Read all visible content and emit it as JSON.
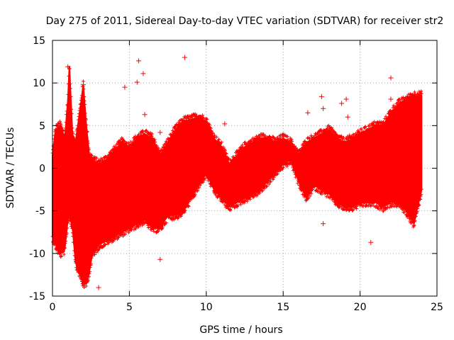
{
  "chart_data": {
    "type": "scatter",
    "title": "Day 275 of 2011, Sidereal Day-to-day VTEC variation (SDTVAR) for receiver str2",
    "xlabel": "GPS time / hours",
    "ylabel": "SDTVAR / TECUs",
    "xlim": [
      0,
      25
    ],
    "ylim": [
      -15,
      15
    ],
    "xticks": [
      0,
      5,
      10,
      15,
      20,
      25
    ],
    "yticks": [
      -15,
      -10,
      -5,
      0,
      5,
      10,
      15
    ],
    "grid": true,
    "legend": "none",
    "series": [
      {
        "name": "str2",
        "color": "#ff0000",
        "marker": "+",
        "envelope": {
          "x": [
            0.0,
            0.2,
            0.5,
            0.8,
            1.0,
            1.1,
            1.3,
            1.5,
            1.8,
            2.0,
            2.2,
            2.4,
            2.6,
            3.0,
            3.5,
            4.0,
            4.5,
            5.0,
            5.5,
            6.0,
            6.5,
            7.0,
            7.5,
            8.0,
            8.5,
            9.0,
            9.5,
            10.0,
            10.5,
            11.0,
            11.5,
            12.0,
            12.5,
            13.0,
            13.5,
            14.0,
            14.5,
            15.0,
            15.5,
            16.0,
            16.5,
            17.0,
            17.5,
            18.0,
            18.5,
            19.0,
            19.5,
            20.0,
            20.5,
            21.0,
            21.5,
            22.0,
            22.5,
            23.0,
            23.5,
            24.0
          ],
          "upper": [
            1.5,
            4.5,
            5.0,
            3.5,
            8.0,
            12.0,
            4.0,
            3.0,
            7.0,
            9.8,
            5.0,
            1.5,
            1.0,
            0.5,
            1.0,
            2.0,
            3.0,
            2.5,
            3.5,
            4.0,
            3.5,
            1.5,
            3.0,
            4.5,
            5.5,
            5.7,
            6.0,
            5.5,
            3.5,
            2.5,
            0.5,
            1.5,
            2.5,
            3.0,
            3.5,
            3.5,
            3.0,
            3.5,
            3.0,
            1.5,
            3.0,
            3.5,
            4.0,
            4.5,
            3.5,
            3.0,
            3.5,
            4.0,
            4.5,
            5.0,
            5.0,
            6.5,
            7.5,
            8.0,
            8.5,
            8.5
          ],
          "lower": [
            -8.0,
            -9.0,
            -10.0,
            -9.5,
            -6.0,
            -5.5,
            -7.0,
            -11.0,
            -12.5,
            -13.5,
            -13.5,
            -12.0,
            -10.0,
            -9.0,
            -8.5,
            -8.0,
            -7.5,
            -7.0,
            -6.5,
            -6.0,
            -7.0,
            -7.0,
            -5.5,
            -5.5,
            -5.0,
            -3.5,
            -2.0,
            -0.5,
            -2.5,
            -3.5,
            -4.5,
            -4.0,
            -3.5,
            -3.0,
            -2.5,
            -1.5,
            -0.5,
            0.5,
            1.0,
            -1.5,
            -3.5,
            -2.0,
            -2.5,
            -3.0,
            -4.0,
            -4.5,
            -4.5,
            -4.0,
            -4.0,
            -4.0,
            -4.5,
            -4.0,
            -4.0,
            -5.0,
            -6.5,
            -2.5
          ]
        },
        "outliers": [
          {
            "x": 1.0,
            "y": 11.9
          },
          {
            "x": 2.0,
            "y": 9.8
          },
          {
            "x": 3.0,
            "y": -14.0
          },
          {
            "x": 4.7,
            "y": 9.5
          },
          {
            "x": 5.5,
            "y": 10.1
          },
          {
            "x": 5.6,
            "y": 12.6
          },
          {
            "x": 5.9,
            "y": 11.1
          },
          {
            "x": 6.0,
            "y": 6.3
          },
          {
            "x": 7.0,
            "y": -10.7
          },
          {
            "x": 7.0,
            "y": 4.2
          },
          {
            "x": 8.6,
            "y": 13.0
          },
          {
            "x": 11.2,
            "y": 5.2
          },
          {
            "x": 16.6,
            "y": 6.5
          },
          {
            "x": 17.5,
            "y": 8.4
          },
          {
            "x": 17.6,
            "y": 7.0
          },
          {
            "x": 17.6,
            "y": -6.5
          },
          {
            "x": 18.8,
            "y": 7.6
          },
          {
            "x": 19.1,
            "y": 8.1
          },
          {
            "x": 19.2,
            "y": 6.0
          },
          {
            "x": 20.7,
            "y": -8.7
          },
          {
            "x": 22.0,
            "y": 10.6
          },
          {
            "x": 22.0,
            "y": 8.1
          }
        ]
      }
    ]
  }
}
